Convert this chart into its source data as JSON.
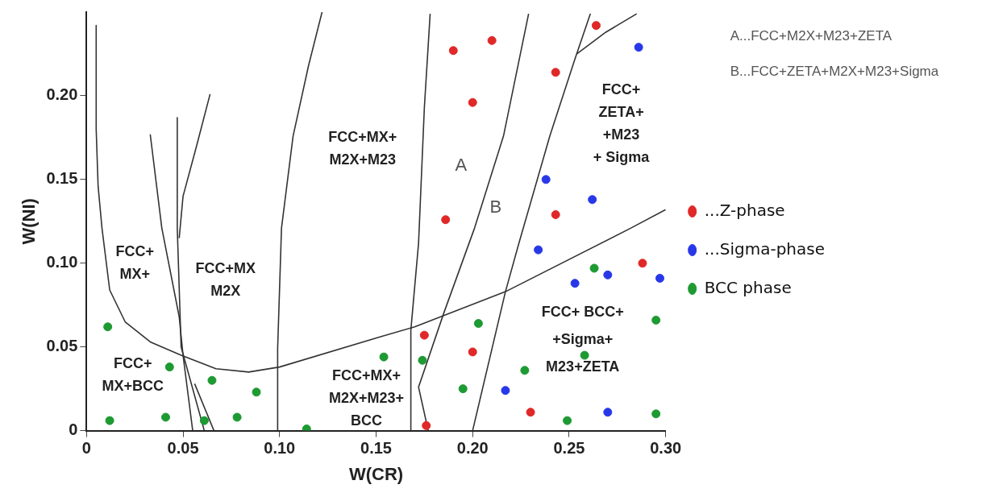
{
  "chart_data": {
    "type": "scatter",
    "xlabel": "W(CR)",
    "ylabel": "W(NI)",
    "xlim": [
      0,
      0.3
    ],
    "ylim": [
      0,
      0.25
    ],
    "xticks": [
      0,
      {
        "value": 0.05,
        "label": "0.05"
      },
      {
        "value": 0.1,
        "label": "0.10"
      },
      {
        "value": 0.15,
        "label": "0.15"
      },
      {
        "value": 0.2,
        "label": "0.20"
      },
      {
        "value": 0.25,
        "label": "0.25"
      },
      {
        "value": 0.3,
        "label": "0.30"
      }
    ],
    "yticks": [
      0,
      {
        "value": 0.05,
        "label": "0.05"
      },
      {
        "value": 0.1,
        "label": "0.10"
      },
      {
        "value": 0.15,
        "label": "0.15"
      },
      {
        "value": 0.2,
        "label": "0.20"
      }
    ],
    "grid": false,
    "legend": "right",
    "marker": "circle",
    "series": [
      {
        "name": "...Z-phase",
        "color": "#e02828",
        "x": [
          0.19,
          0.21,
          0.2,
          0.186,
          0.243,
          0.264,
          0.243,
          0.288,
          0.175,
          0.2,
          0.23,
          0.176
        ],
        "values": [
          0.227,
          0.233,
          0.196,
          0.126,
          0.214,
          0.242,
          0.129,
          0.1,
          0.057,
          0.047,
          0.011,
          0.003
        ]
      },
      {
        "name": "...Sigma-phase",
        "color": "#2838e8",
        "x": [
          0.286,
          0.238,
          0.262,
          0.234,
          0.253,
          0.27,
          0.297,
          0.217,
          0.27
        ],
        "values": [
          0.229,
          0.15,
          0.138,
          0.108,
          0.088,
          0.093,
          0.091,
          0.024,
          0.011
        ]
      },
      {
        "name": "BCC phase",
        "color": "#1e9a32",
        "x": [
          0.011,
          0.043,
          0.065,
          0.088,
          0.012,
          0.041,
          0.061,
          0.078,
          0.114,
          0.154,
          0.174,
          0.203,
          0.227,
          0.195,
          0.263,
          0.295,
          0.258,
          0.249,
          0.295
        ],
        "values": [
          0.062,
          0.038,
          0.03,
          0.023,
          0.006,
          0.008,
          0.006,
          0.008,
          0.001,
          0.044,
          0.042,
          0.064,
          0.036,
          0.025,
          0.097,
          0.066,
          0.045,
          0.006,
          0.01
        ]
      },
      {
        "type": "line",
        "marker": "none",
        "color": "#333333",
        "x": [
          0.005,
          0.005,
          0.006,
          0.008,
          0.012,
          0.02,
          0.033,
          0.049,
          0.067,
          0.084,
          0.1,
          0.152,
          0.17,
          0.217,
          0.282,
          0.3
        ],
        "values": [
          0.242,
          0.18,
          0.146,
          0.121,
          0.084,
          0.065,
          0.053,
          0.045,
          0.037,
          0.035,
          0.038,
          0.056,
          0.062,
          0.083,
          0.121,
          0.132
        ]
      },
      {
        "type": "line",
        "marker": "none",
        "color": "#333333",
        "x": [
          0.033,
          0.039,
          0.048,
          0.05,
          0.055
        ],
        "values": [
          0.177,
          0.121,
          0.068,
          0.045,
          0
        ]
      },
      {
        "type": "line",
        "marker": "none",
        "color": "#333333",
        "x": [
          0.047,
          0.047,
          0.049,
          0.061
        ],
        "values": [
          0.187,
          0.121,
          0.05,
          0
        ]
      },
      {
        "type": "line",
        "marker": "none",
        "color": "#333333",
        "x": [
          0.064,
          0.057,
          0.05,
          0.048
        ],
        "values": [
          0.201,
          0.17,
          0.14,
          0.115
        ]
      },
      {
        "type": "line",
        "marker": "none",
        "color": "#333333",
        "x": [
          0.056,
          0.066
        ],
        "values": [
          0.028,
          0
        ]
      },
      {
        "type": "line",
        "marker": "none",
        "color": "#333333",
        "x": [
          0.122,
          0.115,
          0.107,
          0.101,
          0.099,
          0.099
        ],
        "values": [
          0.25,
          0.218,
          0.176,
          0.121,
          0.049,
          0
        ]
      },
      {
        "type": "line",
        "marker": "none",
        "color": "#333333",
        "x": [
          0.178,
          0.175,
          0.172,
          0.168,
          0.168
        ],
        "values": [
          0.249,
          0.193,
          0.112,
          0.06,
          0
        ]
      },
      {
        "type": "line",
        "marker": "none",
        "color": "#333333",
        "x": [
          0.229,
          0.216,
          0.201,
          0.185,
          0.172,
          0.177
        ],
        "values": [
          0.249,
          0.176,
          0.121,
          0.07,
          0.026,
          0
        ]
      },
      {
        "type": "line",
        "marker": "none",
        "color": "#333333",
        "x": [
          0.261,
          0.253,
          0.24,
          0.224,
          0.217,
          0.2
        ],
        "values": [
          0.249,
          0.222,
          0.176,
          0.112,
          0.083,
          0
        ]
      },
      {
        "type": "line",
        "marker": "none",
        "color": "#333333",
        "x": [
          0.254,
          0.269,
          0.285
        ],
        "values": [
          0.225,
          0.238,
          0.249
        ]
      }
    ],
    "annotations": [
      "FCC+\nMX+",
      "FCC+MX\nM2X",
      "FCC+MX+\nM2X+M23",
      "FCC+\nMX+BCC",
      "FCC+MX+\nM2X+M23+\nBCC",
      "A",
      "B",
      "FCC+\nZETA+\n+M23\n+ Sigma",
      "FCC+ BCC+\n+Sigma+\nM23+ZETA",
      "A...FCC+M2X+M23+ZETA",
      "B...FCC+ZETA+M2X+M23+Sigma"
    ]
  }
}
